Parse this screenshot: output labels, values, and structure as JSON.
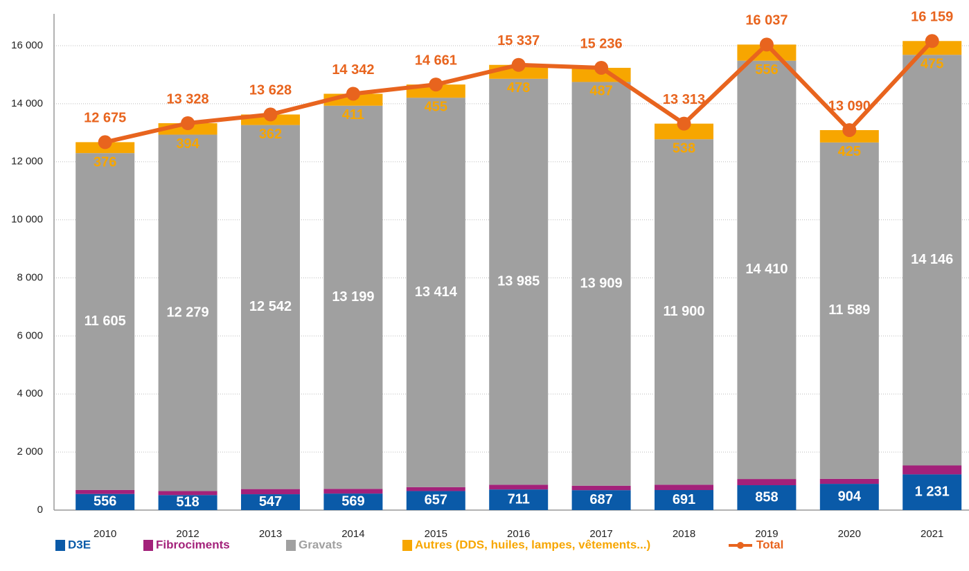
{
  "chart_data": {
    "type": "stacked-bar-line",
    "categories": [
      "2010",
      "2012",
      "2013",
      "2014",
      "2015",
      "2016",
      "2017",
      "2018",
      "2019",
      "2020",
      "2021"
    ],
    "series": [
      {
        "name": "D3E",
        "color": "#0a5aa8",
        "values": [
          556,
          518,
          547,
          569,
          657,
          711,
          687,
          691,
          858,
          904,
          1231
        ],
        "value_labels": [
          "556",
          "518",
          "547",
          "569",
          "657",
          "711",
          "687",
          "691",
          "858",
          "904",
          "1 231"
        ]
      },
      {
        "name": "Fibrociments",
        "color": "#a3217a",
        "values": [
          138,
          137,
          177,
          163,
          135,
          163,
          153,
          184,
          213,
          172,
          307
        ]
      },
      {
        "name": "Gravats",
        "color": "#a0a0a0",
        "values": [
          11605,
          12279,
          12542,
          13199,
          13414,
          13985,
          13909,
          11900,
          14410,
          11589,
          14146
        ],
        "value_labels": [
          "11 605",
          "12 279",
          "12 542",
          "13 199",
          "13 414",
          "13 985",
          "13 909",
          "11 900",
          "14 410",
          "11 589",
          "14 146"
        ]
      },
      {
        "name": "Autres (DDS, huiles, lampes, vêtements...)",
        "color": "#f7a600",
        "values": [
          376,
          394,
          362,
          411,
          455,
          478,
          487,
          538,
          556,
          425,
          475
        ]
      },
      {
        "name": "Total",
        "color": "#e8641e",
        "type": "line",
        "values": [
          12675,
          13328,
          13628,
          14342,
          14661,
          15337,
          15236,
          13313,
          16037,
          13090,
          16159
        ],
        "value_labels": [
          "12 675",
          "13 328",
          "13 628",
          "14 342",
          "14 661",
          "15 337",
          "15 236",
          "13 313",
          "16 037",
          "13 090",
          "16 159"
        ]
      }
    ],
    "ylim": [
      0,
      17000
    ],
    "yticks": [
      0,
      {
        "value": 2000,
        "label": "2 000"
      },
      {
        "value": 4000,
        "label": "4 000"
      },
      {
        "value": 6000,
        "label": "6 000"
      },
      {
        "value": 8000,
        "label": "8 000"
      },
      {
        "value": 10000,
        "label": "10 000"
      },
      {
        "value": 12000,
        "label": "12 000"
      },
      {
        "value": 14000,
        "label": "14 000"
      },
      {
        "value": 16000,
        "label": "16 000"
      }
    ],
    "grid": true,
    "legend": "bottom"
  }
}
